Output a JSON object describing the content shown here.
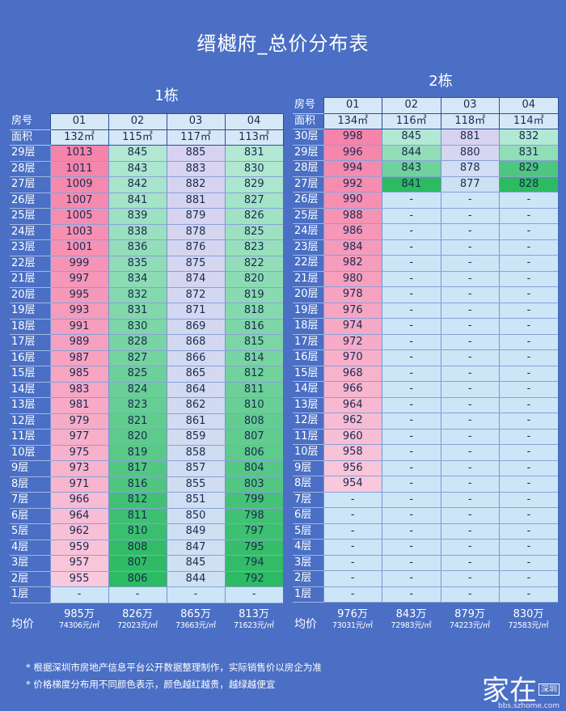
{
  "title": "缙樾府_总价分布表",
  "labels": {
    "room": "房号",
    "area": "面积",
    "avg": "均价"
  },
  "buildings": [
    {
      "name": "1栋",
      "units": [
        "01",
        "02",
        "03",
        "04"
      ],
      "areas": [
        "132㎡",
        "115㎡",
        "117㎡",
        "113㎡"
      ],
      "floors": [
        {
          "floor": "29层",
          "prices": [
            "1013",
            "845",
            "885",
            "831"
          ]
        },
        {
          "floor": "28层",
          "prices": [
            "1011",
            "843",
            "883",
            "830"
          ]
        },
        {
          "floor": "27层",
          "prices": [
            "1009",
            "842",
            "882",
            "829"
          ]
        },
        {
          "floor": "26层",
          "prices": [
            "1007",
            "841",
            "881",
            "827"
          ]
        },
        {
          "floor": "25层",
          "prices": [
            "1005",
            "839",
            "879",
            "826"
          ]
        },
        {
          "floor": "24层",
          "prices": [
            "1003",
            "838",
            "878",
            "825"
          ]
        },
        {
          "floor": "23层",
          "prices": [
            "1001",
            "836",
            "876",
            "823"
          ]
        },
        {
          "floor": "22层",
          "prices": [
            "999",
            "835",
            "875",
            "822"
          ]
        },
        {
          "floor": "21层",
          "prices": [
            "997",
            "834",
            "874",
            "820"
          ]
        },
        {
          "floor": "20层",
          "prices": [
            "995",
            "832",
            "872",
            "819"
          ]
        },
        {
          "floor": "19层",
          "prices": [
            "993",
            "831",
            "871",
            "818"
          ]
        },
        {
          "floor": "18层",
          "prices": [
            "991",
            "830",
            "869",
            "816"
          ]
        },
        {
          "floor": "17层",
          "prices": [
            "989",
            "828",
            "868",
            "815"
          ]
        },
        {
          "floor": "16层",
          "prices": [
            "987",
            "827",
            "866",
            "814"
          ]
        },
        {
          "floor": "15层",
          "prices": [
            "985",
            "825",
            "865",
            "812"
          ]
        },
        {
          "floor": "14层",
          "prices": [
            "983",
            "824",
            "864",
            "811"
          ]
        },
        {
          "floor": "13层",
          "prices": [
            "981",
            "823",
            "862",
            "810"
          ]
        },
        {
          "floor": "12层",
          "prices": [
            "979",
            "821",
            "861",
            "808"
          ]
        },
        {
          "floor": "11层",
          "prices": [
            "977",
            "820",
            "859",
            "807"
          ]
        },
        {
          "floor": "10层",
          "prices": [
            "975",
            "819",
            "858",
            "806"
          ]
        },
        {
          "floor": "9层",
          "prices": [
            "973",
            "817",
            "857",
            "804"
          ]
        },
        {
          "floor": "8层",
          "prices": [
            "971",
            "816",
            "855",
            "803"
          ]
        },
        {
          "floor": "7层",
          "prices": [
            "966",
            "812",
            "851",
            "799"
          ]
        },
        {
          "floor": "6层",
          "prices": [
            "964",
            "811",
            "850",
            "798"
          ]
        },
        {
          "floor": "5层",
          "prices": [
            "962",
            "810",
            "849",
            "797"
          ]
        },
        {
          "floor": "4层",
          "prices": [
            "959",
            "808",
            "847",
            "795"
          ]
        },
        {
          "floor": "3层",
          "prices": [
            "957",
            "807",
            "845",
            "794"
          ]
        },
        {
          "floor": "2层",
          "prices": [
            "955",
            "806",
            "844",
            "792"
          ]
        },
        {
          "floor": "1层",
          "prices": [
            "-",
            "-",
            "-",
            "-"
          ]
        }
      ],
      "avg": [
        {
          "total": "985万",
          "unit": "74306元/㎡"
        },
        {
          "total": "826万",
          "unit": "72023元/㎡"
        },
        {
          "total": "865万",
          "unit": "73663元/㎡"
        },
        {
          "total": "813万",
          "unit": "71623元/㎡"
        }
      ]
    },
    {
      "name": "2栋",
      "units": [
        "01",
        "02",
        "03",
        "04"
      ],
      "areas": [
        "134㎡",
        "116㎡",
        "118㎡",
        "114㎡"
      ],
      "floors": [
        {
          "floor": "30层",
          "prices": [
            "998",
            "845",
            "881",
            "832"
          ]
        },
        {
          "floor": "29层",
          "prices": [
            "996",
            "844",
            "880",
            "831"
          ]
        },
        {
          "floor": "28层",
          "prices": [
            "994",
            "843",
            "878",
            "829"
          ]
        },
        {
          "floor": "27层",
          "prices": [
            "992",
            "841",
            "877",
            "828"
          ]
        },
        {
          "floor": "26层",
          "prices": [
            "990",
            "-",
            "-",
            "-"
          ]
        },
        {
          "floor": "25层",
          "prices": [
            "988",
            "-",
            "-",
            "-"
          ]
        },
        {
          "floor": "24层",
          "prices": [
            "986",
            "-",
            "-",
            "-"
          ]
        },
        {
          "floor": "23层",
          "prices": [
            "984",
            "-",
            "-",
            "-"
          ]
        },
        {
          "floor": "22层",
          "prices": [
            "982",
            "-",
            "-",
            "-"
          ]
        },
        {
          "floor": "21层",
          "prices": [
            "980",
            "-",
            "-",
            "-"
          ]
        },
        {
          "floor": "20层",
          "prices": [
            "978",
            "-",
            "-",
            "-"
          ]
        },
        {
          "floor": "19层",
          "prices": [
            "976",
            "-",
            "-",
            "-"
          ]
        },
        {
          "floor": "18层",
          "prices": [
            "974",
            "-",
            "-",
            "-"
          ]
        },
        {
          "floor": "17层",
          "prices": [
            "972",
            "-",
            "-",
            "-"
          ]
        },
        {
          "floor": "16层",
          "prices": [
            "970",
            "-",
            "-",
            "-"
          ]
        },
        {
          "floor": "15层",
          "prices": [
            "968",
            "-",
            "-",
            "-"
          ]
        },
        {
          "floor": "14层",
          "prices": [
            "966",
            "-",
            "-",
            "-"
          ]
        },
        {
          "floor": "13层",
          "prices": [
            "964",
            "-",
            "-",
            "-"
          ]
        },
        {
          "floor": "12层",
          "prices": [
            "962",
            "-",
            "-",
            "-"
          ]
        },
        {
          "floor": "11层",
          "prices": [
            "960",
            "-",
            "-",
            "-"
          ]
        },
        {
          "floor": "10层",
          "prices": [
            "958",
            "-",
            "-",
            "-"
          ]
        },
        {
          "floor": "9层",
          "prices": [
            "956",
            "-",
            "-",
            "-"
          ]
        },
        {
          "floor": "8层",
          "prices": [
            "954",
            "-",
            "-",
            "-"
          ]
        },
        {
          "floor": "7层",
          "prices": [
            "-",
            "-",
            "-",
            "-"
          ]
        },
        {
          "floor": "6层",
          "prices": [
            "-",
            "-",
            "-",
            "-"
          ]
        },
        {
          "floor": "5层",
          "prices": [
            "-",
            "-",
            "-",
            "-"
          ]
        },
        {
          "floor": "4层",
          "prices": [
            "-",
            "-",
            "-",
            "-"
          ]
        },
        {
          "floor": "3层",
          "prices": [
            "-",
            "-",
            "-",
            "-"
          ]
        },
        {
          "floor": "2层",
          "prices": [
            "-",
            "-",
            "-",
            "-"
          ]
        },
        {
          "floor": "1层",
          "prices": [
            "-",
            "-",
            "-",
            "-"
          ]
        }
      ],
      "avg": [
        {
          "total": "976万",
          "unit": "73031元/㎡"
        },
        {
          "total": "843万",
          "unit": "72983元/㎡"
        },
        {
          "total": "879万",
          "unit": "74223元/㎡"
        },
        {
          "total": "830万",
          "unit": "72583元/㎡"
        }
      ]
    }
  ],
  "notes": [
    "* 根据深圳市房地产信息平台公开数据整理制作，实际销售价以房企为准",
    "* 价格梯度分布用不同颜色表示，颜色越红越贵，越绿越便宜"
  ],
  "watermark": {
    "text": "家在",
    "sub": "深圳",
    "url": "bbs.szhome.com"
  },
  "colors": {
    "background": "#4a6fc4",
    "expensive": "#f58fb0",
    "cheap": "#2dbb62",
    "empty": "#cde6f7"
  }
}
